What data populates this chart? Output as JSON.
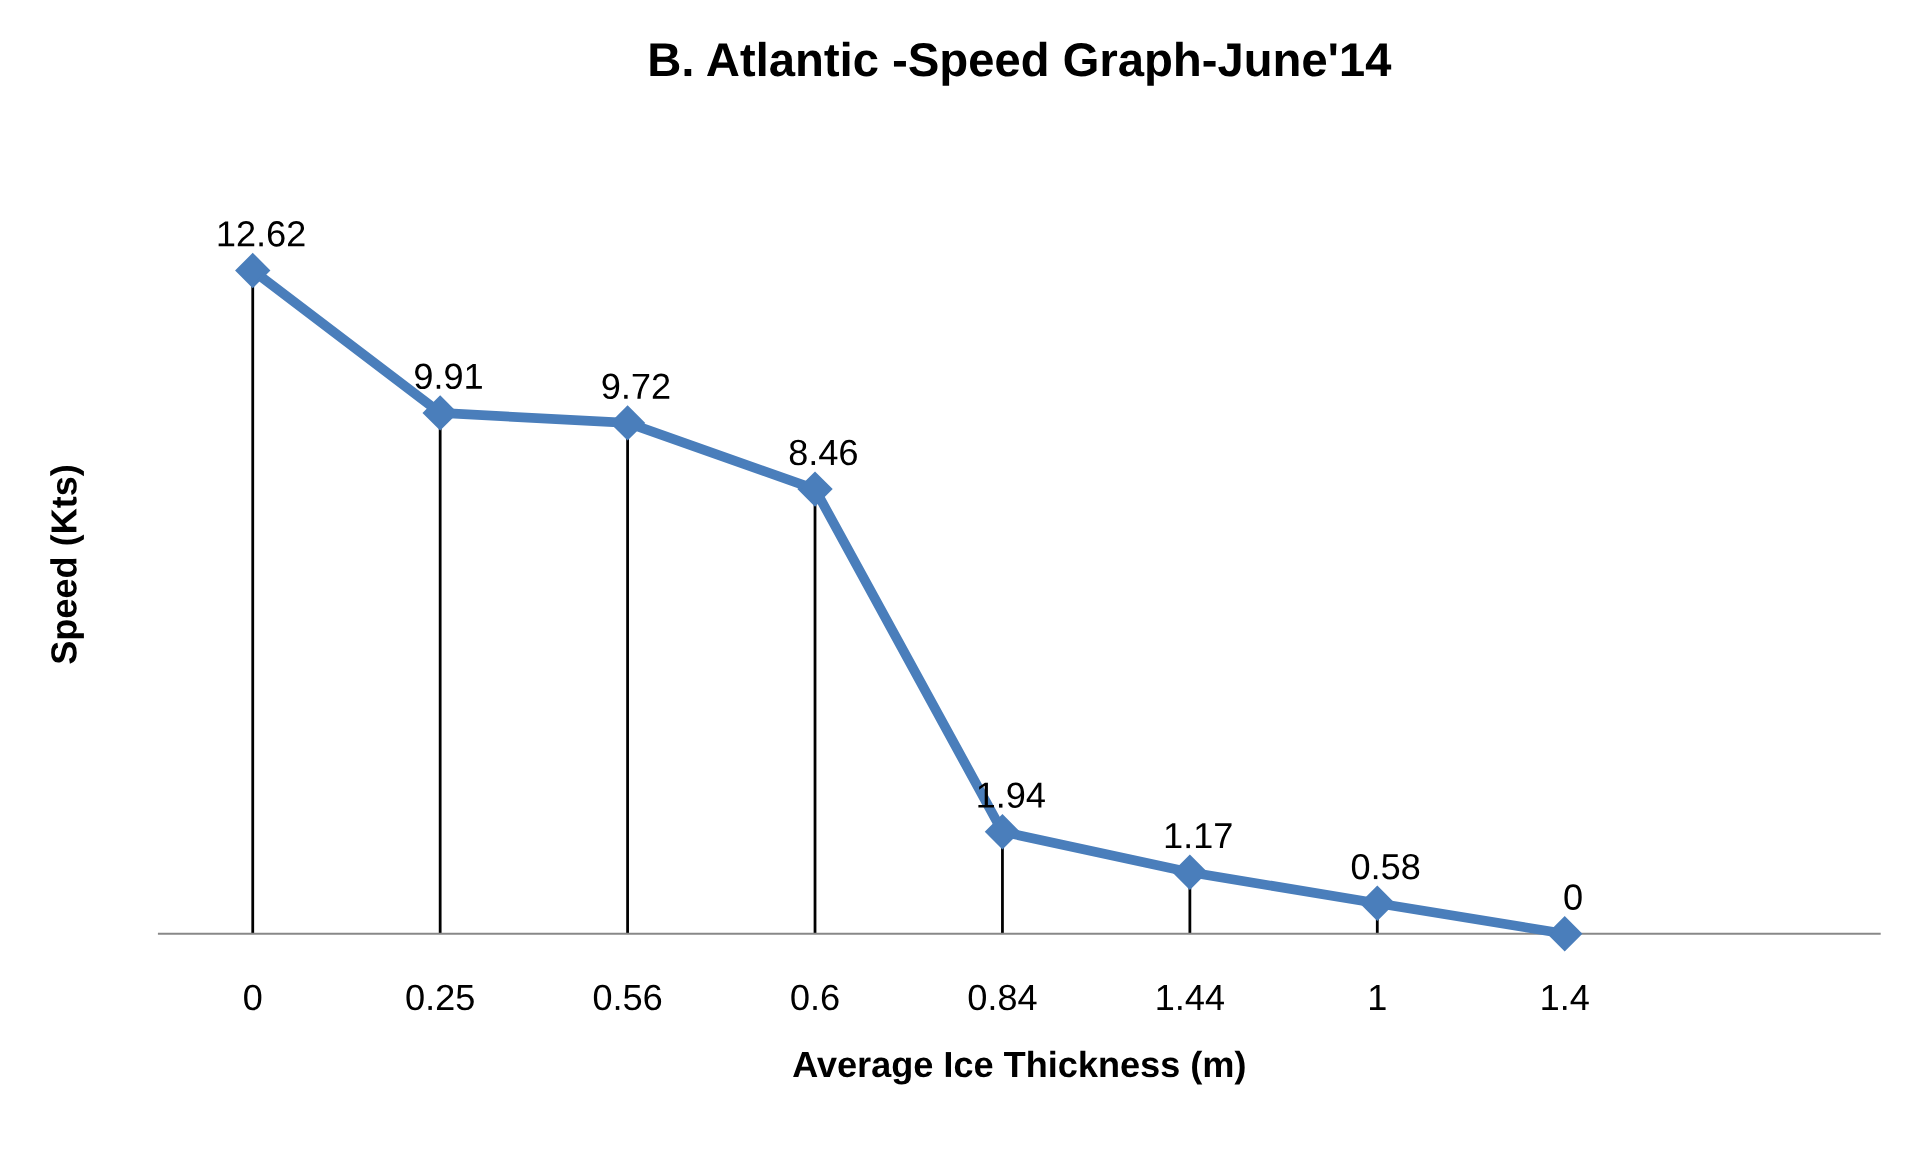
{
  "chart_data": {
    "type": "line",
    "title": "B. Atlantic -Speed Graph-June'14",
    "xlabel": "Average Ice Thickness (m)",
    "ylabel": "Speed (Kts)",
    "categories": [
      "0",
      "0.25",
      "0.56",
      "0.6",
      "0.84",
      "1.44",
      "1",
      "1.4"
    ],
    "series": [
      {
        "color": "#4a7ebb",
        "values": [
          12.62,
          9.91,
          9.72,
          8.46,
          1.94,
          1.17,
          0.58,
          0
        ]
      }
    ],
    "marker": "diamond",
    "line_style": "solid",
    "data_labels": true,
    "grid": "x",
    "tick_labels": "x"
  }
}
